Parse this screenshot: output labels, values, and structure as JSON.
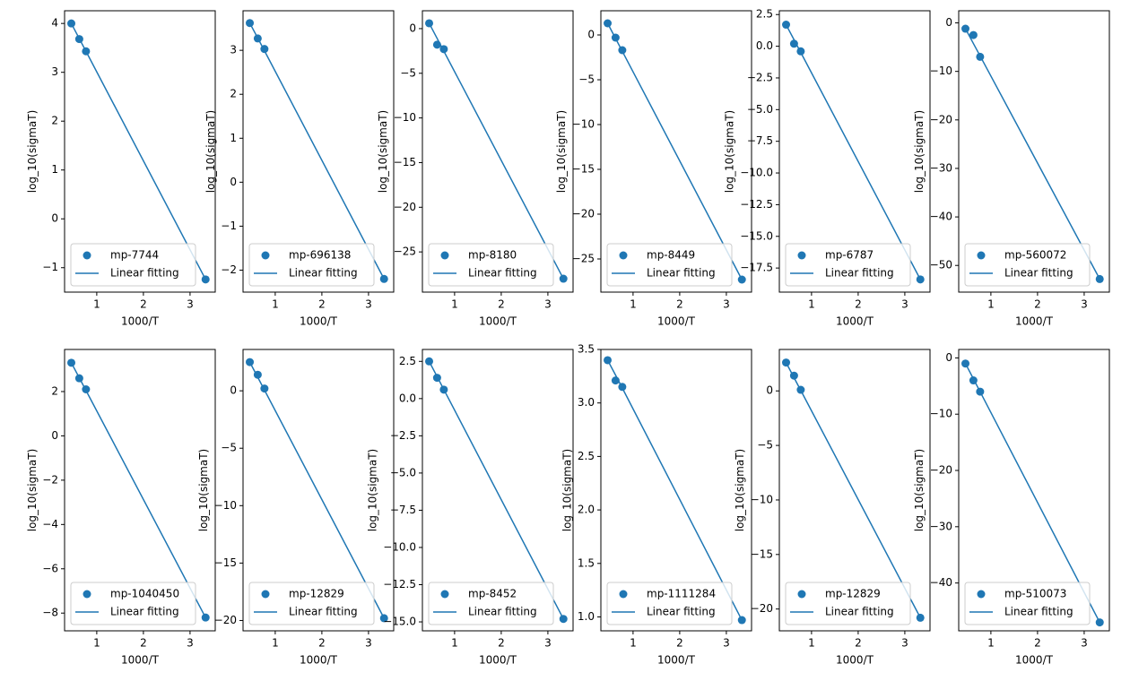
{
  "chart_data": [
    {
      "type": "scatter",
      "xlabel": "1000/T",
      "ylabel": "log_10(sigmaT)",
      "legend": "lower left",
      "x": [
        0.4545,
        0.625,
        0.769,
        3.333
      ],
      "xlim": [
        0.31,
        3.54
      ],
      "xticks": [
        1,
        2,
        3
      ],
      "ylim": [
        -1.5,
        4.26
      ],
      "yticks": [
        {
          "value": -1,
          "label": "−1"
        },
        0,
        1,
        2,
        3,
        4
      ],
      "series": [
        {
          "name": "mp-7744",
          "color": "#1f77b4",
          "values": [
            4.0,
            3.68,
            3.43,
            -1.24
          ]
        },
        {
          "name": "Linear fitting",
          "color": "#1f77b4",
          "values": [
            4.0,
            3.69,
            3.43,
            -1.24
          ]
        }
      ]
    },
    {
      "type": "scatter",
      "xlabel": "1000/T",
      "ylabel": "log_10(sigmaT)",
      "legend": "lower left",
      "x": [
        0.4545,
        0.625,
        0.769,
        3.333
      ],
      "xlim": [
        0.31,
        3.54
      ],
      "xticks": [
        1,
        2,
        3
      ],
      "ylim": [
        -2.5,
        3.9
      ],
      "yticks": [
        {
          "value": -2,
          "label": "−2"
        },
        {
          "value": -1,
          "label": "−1"
        },
        0,
        1,
        2,
        3
      ],
      "series": [
        {
          "name": "mp-696138",
          "color": "#1f77b4",
          "values": [
            3.62,
            3.27,
            3.03,
            -2.2
          ]
        },
        {
          "name": "Linear fitting",
          "color": "#1f77b4",
          "values": [
            3.62,
            3.28,
            2.99,
            -2.2
          ]
        }
      ]
    },
    {
      "type": "scatter",
      "xlabel": "1000/T",
      "ylabel": "log_10(sigmaT)",
      "legend": "lower left",
      "x": [
        0.4545,
        0.625,
        0.769,
        3.333
      ],
      "xlim": [
        0.31,
        3.54
      ],
      "xticks": [
        1,
        2,
        3
      ],
      "ylim": [
        -29.5,
        2.0
      ],
      "yticks": [
        {
          "value": -25,
          "label": "−25"
        },
        {
          "value": -20,
          "label": "−20"
        },
        {
          "value": -15,
          "label": "−15"
        },
        {
          "value": -10,
          "label": "−10"
        },
        {
          "value": -5,
          "label": "−5"
        },
        0
      ],
      "series": [
        {
          "name": "mp-8180",
          "color": "#1f77b4",
          "values": [
            0.6,
            -1.8,
            -2.3,
            -28
          ]
        },
        {
          "name": "Linear fitting",
          "color": "#1f77b4",
          "values": [
            0.6,
            -1.09,
            -2.52,
            -28
          ]
        }
      ]
    },
    {
      "type": "scatter",
      "xlabel": "1000/T",
      "ylabel": "log_10(sigmaT)",
      "legend": "lower left",
      "x": [
        0.4545,
        0.625,
        0.769,
        3.333
      ],
      "xlim": [
        0.31,
        3.54
      ],
      "xticks": [
        1,
        2,
        3
      ],
      "ylim": [
        -28.7,
        2.7
      ],
      "yticks": [
        {
          "value": -25,
          "label": "−25"
        },
        {
          "value": -20,
          "label": "−20"
        },
        {
          "value": -15,
          "label": "−15"
        },
        {
          "value": -10,
          "label": "−10"
        },
        {
          "value": -5,
          "label": "−5"
        },
        0
      ],
      "series": [
        {
          "name": "mp-8449",
          "color": "#1f77b4",
          "values": [
            1.3,
            -0.3,
            -1.7,
            -27.3
          ]
        },
        {
          "name": "Linear fitting",
          "color": "#1f77b4",
          "values": [
            1.3,
            -0.39,
            -1.82,
            -27.3
          ]
        }
      ]
    },
    {
      "type": "scatter",
      "xlabel": "1000/T",
      "ylabel": "log_10(sigmaT)",
      "legend": "lower left",
      "x": [
        0.4545,
        0.625,
        0.769,
        3.333
      ],
      "xlim": [
        0.31,
        3.54
      ],
      "xticks": [
        1,
        2,
        3
      ],
      "ylim": [
        -19.4,
        2.8
      ],
      "yticks": [
        {
          "value": -17.5,
          "label": "−17.5"
        },
        {
          "value": -15,
          "label": "−15.0"
        },
        {
          "value": -12.5,
          "label": "−12.5"
        },
        {
          "value": -10,
          "label": "−10.0"
        },
        {
          "value": -7.5,
          "label": "−7.5"
        },
        {
          "value": -5,
          "label": "−5.0"
        },
        {
          "value": -2.5,
          "label": "−2.5"
        },
        {
          "value": 0,
          "label": "0.0"
        },
        2.5
      ],
      "series": [
        {
          "name": "mp-6787",
          "color": "#1f77b4",
          "values": [
            1.7,
            0.2,
            -0.4,
            -18.4
          ]
        },
        {
          "name": "Linear fitting",
          "color": "#1f77b4",
          "values": [
            1.7,
            0.51,
            -0.49,
            -18.4
          ]
        }
      ]
    },
    {
      "type": "scatter",
      "xlabel": "1000/T",
      "ylabel": "log_10(sigmaT)",
      "legend": "lower left",
      "x": [
        0.4545,
        0.625,
        0.769,
        3.333
      ],
      "xlim": [
        0.31,
        3.54
      ],
      "xticks": [
        1,
        2,
        3
      ],
      "ylim": [
        -55.5,
        2.5
      ],
      "yticks": [
        {
          "value": -50,
          "label": "−50"
        },
        {
          "value": -40,
          "label": "−40"
        },
        {
          "value": -30,
          "label": "−30"
        },
        {
          "value": -20,
          "label": "−20"
        },
        {
          "value": -10,
          "label": "−10"
        },
        0
      ],
      "series": [
        {
          "name": "mp-560072",
          "color": "#1f77b4",
          "values": [
            -1.2,
            -2.5,
            -7,
            -52.8
          ]
        },
        {
          "name": "Linear fitting",
          "color": "#1f77b4",
          "values": [
            -1.2,
            -4.25,
            -6.82,
            -52.8
          ]
        }
      ]
    },
    {
      "type": "scatter",
      "xlabel": "1000/T",
      "ylabel": "log_10(sigmaT)",
      "legend": "lower left",
      "x": [
        0.4545,
        0.625,
        0.769,
        3.333
      ],
      "xlim": [
        0.31,
        3.54
      ],
      "xticks": [
        1,
        2,
        3
      ],
      "ylim": [
        -8.8,
        3.9
      ],
      "yticks": [
        {
          "value": -8,
          "label": "−8"
        },
        {
          "value": -6,
          "label": "−6"
        },
        {
          "value": -4,
          "label": "−4"
        },
        {
          "value": -2,
          "label": "−2"
        },
        0,
        2
      ],
      "series": [
        {
          "name": "mp-1040450",
          "color": "#1f77b4",
          "values": [
            3.3,
            2.6,
            2.1,
            -8.2
          ]
        },
        {
          "name": "Linear fitting",
          "color": "#1f77b4",
          "values": [
            3.3,
            2.62,
            2.05,
            -8.2
          ]
        }
      ]
    },
    {
      "type": "scatter",
      "xlabel": "1000/T",
      "ylabel": "log_10(sigmaT)",
      "legend": "lower left",
      "x": [
        0.4545,
        0.625,
        0.769,
        3.333
      ],
      "xlim": [
        0.31,
        3.54
      ],
      "xticks": [
        1,
        2,
        3
      ],
      "ylim": [
        -20.9,
        3.6
      ],
      "yticks": [
        {
          "value": -20,
          "label": "−20"
        },
        {
          "value": -15,
          "label": "−15"
        },
        {
          "value": -10,
          "label": "−10"
        },
        {
          "value": -5,
          "label": "−5"
        },
        0
      ],
      "series": [
        {
          "name": "mp-12829",
          "color": "#1f77b4",
          "values": [
            2.5,
            1.4,
            0.2,
            -19.8
          ]
        },
        {
          "name": "Linear fitting",
          "color": "#1f77b4",
          "values": [
            2.5,
            1.18,
            0.07,
            -19.8
          ]
        }
      ]
    },
    {
      "type": "scatter",
      "xlabel": "1000/T",
      "ylabel": "log_10(sigmaT)",
      "legend": "lower left",
      "x": [
        0.4545,
        0.625,
        0.769,
        3.333
      ],
      "xlim": [
        0.31,
        3.54
      ],
      "xticks": [
        1,
        2,
        3
      ],
      "ylim": [
        -15.6,
        3.3
      ],
      "yticks": [
        {
          "value": -15,
          "label": "−15.0"
        },
        {
          "value": -12.5,
          "label": "−12.5"
        },
        {
          "value": -10,
          "label": "−10.0"
        },
        {
          "value": -7.5,
          "label": "−7.5"
        },
        {
          "value": -5,
          "label": "−5.0"
        },
        {
          "value": -2.5,
          "label": "−2.5"
        },
        {
          "value": 0,
          "label": "0.0"
        },
        2.5
      ],
      "series": [
        {
          "name": "mp-8452",
          "color": "#1f77b4",
          "values": [
            2.5,
            1.4,
            0.6,
            -14.8
          ]
        },
        {
          "name": "Linear fitting",
          "color": "#1f77b4",
          "values": [
            2.5,
            1.48,
            0.61,
            -14.8
          ]
        }
      ]
    },
    {
      "type": "scatter",
      "xlabel": "1000/T",
      "ylabel": "log_10(sigmaT)",
      "legend": "lower left",
      "x": [
        0.4545,
        0.625,
        0.769,
        3.333
      ],
      "xlim": [
        0.31,
        3.54
      ],
      "xticks": [
        1,
        2,
        3
      ],
      "ylim": [
        0.87,
        3.5
      ],
      "yticks": [
        {
          "value": 1,
          "label": "1.0"
        },
        1.5,
        {
          "value": 2,
          "label": "2.0"
        },
        2.5,
        {
          "value": 3,
          "label": "3.0"
        },
        3.5
      ],
      "series": [
        {
          "name": "mp-1111284",
          "color": "#1f77b4",
          "values": [
            3.4,
            3.21,
            3.15,
            0.97
          ]
        },
        {
          "name": "Linear fitting",
          "color": "#1f77b4",
          "values": [
            3.4,
            3.26,
            3.14,
            0.97
          ]
        }
      ]
    },
    {
      "type": "scatter",
      "xlabel": "1000/T",
      "ylabel": "log_10(sigmaT)",
      "legend": "lower left",
      "x": [
        0.4545,
        0.625,
        0.769,
        3.333
      ],
      "xlim": [
        0.31,
        3.54
      ],
      "xticks": [
        1,
        2,
        3
      ],
      "ylim": [
        -22,
        3.8
      ],
      "yticks": [
        {
          "value": -20,
          "label": "−20"
        },
        {
          "value": -15,
          "label": "−15"
        },
        {
          "value": -10,
          "label": "−10"
        },
        {
          "value": -5,
          "label": "−5"
        },
        0
      ],
      "series": [
        {
          "name": "mp-12829",
          "color": "#1f77b4",
          "values": [
            2.6,
            1.4,
            0.1,
            -20.8
          ]
        },
        {
          "name": "Linear fitting",
          "color": "#1f77b4",
          "values": [
            2.6,
            1.21,
            0.05,
            -20.8
          ]
        }
      ]
    },
    {
      "type": "scatter",
      "xlabel": "1000/T",
      "ylabel": "log_10(sigmaT)",
      "legend": "lower left",
      "x": [
        0.4545,
        0.625,
        0.769,
        3.333
      ],
      "xlim": [
        0.31,
        3.54
      ],
      "xticks": [
        1,
        2,
        3
      ],
      "ylim": [
        -48.5,
        1.5
      ],
      "yticks": [
        {
          "value": -40,
          "label": "−40"
        },
        {
          "value": -30,
          "label": "−30"
        },
        {
          "value": -20,
          "label": "−20"
        },
        {
          "value": -10,
          "label": "−10"
        },
        0
      ],
      "series": [
        {
          "name": "mp-510073",
          "color": "#1f77b4",
          "values": [
            -1,
            -4,
            -6,
            -47
          ]
        },
        {
          "name": "Linear fitting",
          "color": "#1f77b4",
          "values": [
            -1,
            -3.72,
            -6.01,
            -47
          ]
        }
      ]
    }
  ]
}
